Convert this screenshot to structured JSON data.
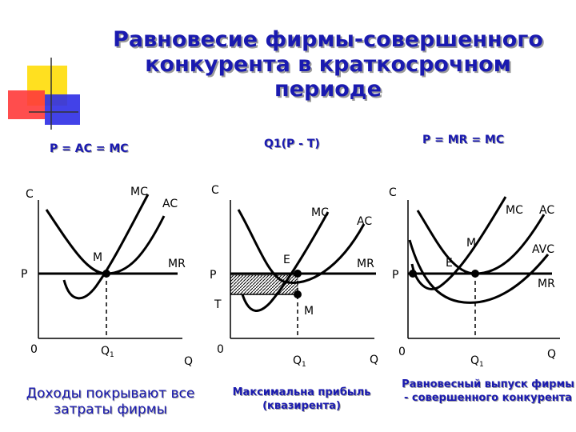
{
  "title": {
    "line1": "Равновесие фирмы-совершенного",
    "line2": "конкурента в краткосрочном",
    "line3": "периоде"
  },
  "subheads": {
    "left": "P = AC = MC",
    "middle": "Q1(P - T)",
    "right": "P = MR = MC"
  },
  "panels": {
    "left": {
      "y_axis": "C",
      "x_axis": "Q",
      "origin": "0",
      "price": "P",
      "mc": "MC",
      "ac": "AC",
      "mr": "MR",
      "point": "M",
      "q_main": "Q",
      "q_sub": "1"
    },
    "middle": {
      "y_axis": "C",
      "x_axis": "Q",
      "origin": "0",
      "price": "P",
      "cost": "T",
      "mc": "MC",
      "ac": "AC",
      "mr": "MR",
      "point_e": "E",
      "point_m": "M",
      "q_main": "Q",
      "q_sub": "1"
    },
    "right": {
      "y_axis": "C",
      "x_axis": "Q",
      "origin": "0",
      "price": "P",
      "mc": "MC",
      "ac": "AC",
      "avc": "AVC",
      "mr": "MR",
      "point_e": "E",
      "point_m": "M",
      "q_main": "Q",
      "q_sub": "1"
    }
  },
  "captions": {
    "left": "Доходы покрывают все затраты фирмы",
    "middle": "Максимальна прибыль (квазирента)",
    "right": "Равновесный выпуск фирмы - совершенного конкурента"
  },
  "colors": {
    "title": "#1a1ab0",
    "logo_yellow": "#ffe020",
    "logo_red": "#ff3030",
    "logo_blue": "#3030e0"
  }
}
